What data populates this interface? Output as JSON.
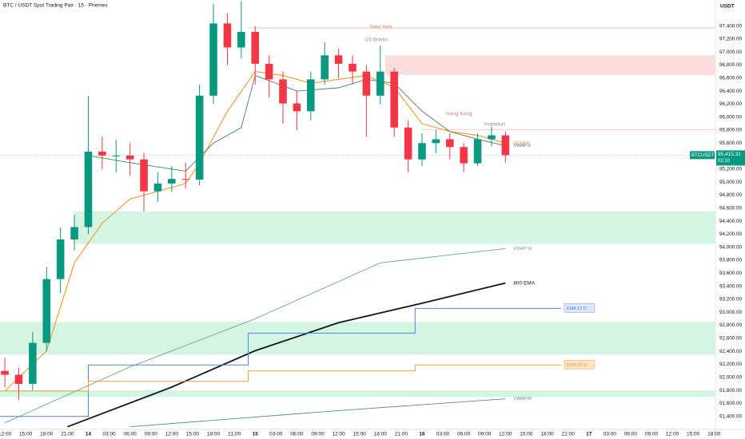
{
  "chart_data": {
    "type": "candlestick",
    "title": "BTC / USDT Spot Trading Pair · 15 · Phemex",
    "currency_label": "USDT",
    "up_color": "#089981",
    "down_color": "#f23645",
    "x": [
      12,
      14,
      16,
      18,
      20,
      22,
      24,
      26,
      28,
      30,
      32,
      34,
      36,
      38,
      40,
      42,
      44,
      46,
      48,
      50,
      52,
      54,
      56,
      58,
      60,
      62,
      64,
      66,
      68,
      70,
      72,
      74,
      76,
      78,
      80,
      82,
      84
    ],
    "open": [
      92100,
      92040,
      91900,
      92530,
      93510,
      94120,
      94310,
      95470,
      95410,
      95410,
      95350,
      94860,
      94980,
      95050,
      95040,
      96330,
      97440,
      97070,
      97310,
      96820,
      96580,
      96210,
      96090,
      96580,
      96950,
      96820,
      96700,
      96330,
      96700,
      95840,
      95350,
      95600,
      95660,
      95540,
      95290,
      95660,
      95720
    ],
    "high": [
      92300,
      92150,
      92700,
      93700,
      94300,
      94500,
      96330,
      95700,
      95650,
      95600,
      95450,
      95150,
      95250,
      95300,
      96500,
      97740,
      97600,
      97780,
      97400,
      96950,
      96700,
      96400,
      96700,
      97150,
      97050,
      96950,
      96800,
      97100,
      96750,
      95950,
      95750,
      95800,
      95750,
      95600,
      95750,
      95850,
      95780
    ],
    "low": [
      91850,
      91650,
      91800,
      92400,
      93300,
      93950,
      94200,
      95200,
      95150,
      95100,
      94550,
      94700,
      94850,
      94900,
      94950,
      96200,
      96800,
      96900,
      96500,
      96300,
      95900,
      95800,
      95950,
      96500,
      96600,
      96500,
      95700,
      96200,
      95700,
      95150,
      95250,
      95450,
      95350,
      95150,
      95250,
      95550,
      95300
    ],
    "close": [
      92040,
      91900,
      92530,
      93510,
      94120,
      94310,
      95470,
      95410,
      95410,
      95350,
      94860,
      94980,
      95050,
      95040,
      96330,
      97440,
      97070,
      97310,
      96820,
      96580,
      96210,
      96090,
      96580,
      96950,
      96820,
      96700,
      96330,
      96700,
      95840,
      95350,
      95600,
      95660,
      95540,
      95290,
      95660,
      95720,
      95415.31
    ],
    "xlim": [
      11.3,
      114.2
    ],
    "xticks": [
      {
        "value": 12,
        "label": "12:00"
      },
      {
        "value": 15,
        "label": "15:00"
      },
      {
        "value": 18,
        "label": "18:00"
      },
      {
        "value": 21,
        "label": "21:00"
      },
      {
        "value": 24,
        "label": "14"
      },
      {
        "value": 27,
        "label": "03:00"
      },
      {
        "value": 30,
        "label": "06:00"
      },
      {
        "value": 33,
        "label": "09:00"
      },
      {
        "value": 36,
        "label": "12:00"
      },
      {
        "value": 39,
        "label": "15:00"
      },
      {
        "value": 42,
        "label": "18:00"
      },
      {
        "value": 45,
        "label": "21:00"
      },
      {
        "value": 48,
        "label": "15"
      },
      {
        "value": 51,
        "label": "03:00"
      },
      {
        "value": 54,
        "label": "06:00"
      },
      {
        "value": 57,
        "label": "09:00"
      },
      {
        "value": 60,
        "label": "12:00"
      },
      {
        "value": 63,
        "label": "15:00"
      },
      {
        "value": 66,
        "label": "18:00"
      },
      {
        "value": 69,
        "label": "21:00"
      },
      {
        "value": 72,
        "label": "16"
      },
      {
        "value": 75,
        "label": "03:00"
      },
      {
        "value": 78,
        "label": "06:00"
      },
      {
        "value": 81,
        "label": "09:00"
      },
      {
        "value": 84,
        "label": "12:00"
      },
      {
        "value": 87,
        "label": "15:00"
      },
      {
        "value": 90,
        "label": "18:00"
      },
      {
        "value": 93,
        "label": "21:00"
      },
      {
        "value": 96,
        "label": "17"
      },
      {
        "value": 99,
        "label": "03:00"
      },
      {
        "value": 102,
        "label": "06:00"
      },
      {
        "value": 105,
        "label": "09:00"
      },
      {
        "value": 108,
        "label": "12:00"
      },
      {
        "value": 111,
        "label": "15:00"
      },
      {
        "value": 114,
        "label": "18:00"
      }
    ],
    "ylim": [
      91200,
      97800
    ],
    "yticks": [
      {
        "value": 91400,
        "label": "91,400.00"
      },
      {
        "value": 91600,
        "label": "91,600.00"
      },
      {
        "value": 91800,
        "label": "91,800.00"
      },
      {
        "value": 92000,
        "label": "92,000.00"
      },
      {
        "value": 92200,
        "label": "92,200.00"
      },
      {
        "value": 92400,
        "label": "92,400.00"
      },
      {
        "value": 92600,
        "label": "92,600.00"
      },
      {
        "value": 92800,
        "label": "92,800.00"
      },
      {
        "value": 93000,
        "label": "93,000.00"
      },
      {
        "value": 93200,
        "label": "93,200.00"
      },
      {
        "value": 93400,
        "label": "93,400.00"
      },
      {
        "value": 93600,
        "label": "93,600.00"
      },
      {
        "value": 93800,
        "label": "93,800.00"
      },
      {
        "value": 94000,
        "label": "94,000.00"
      },
      {
        "value": 94200,
        "label": "94,200.00"
      },
      {
        "value": 94400,
        "label": "94,400.00"
      },
      {
        "value": 94600,
        "label": "94,600.00"
      },
      {
        "value": 94800,
        "label": "94,800.00"
      },
      {
        "value": 95000,
        "label": "95,000.00"
      },
      {
        "value": 95200,
        "label": "95,200.00"
      },
      {
        "value": 95400,
        "label": "95,400.00"
      },
      {
        "value": 95600,
        "label": "95,600.00"
      },
      {
        "value": 95800,
        "label": "95,800.00"
      },
      {
        "value": 96000,
        "label": "96,000.00"
      },
      {
        "value": 96200,
        "label": "96,200.00"
      },
      {
        "value": 96400,
        "label": "96,400.00"
      },
      {
        "value": 96600,
        "label": "96,600.00"
      },
      {
        "value": 96800,
        "label": "96,800.00"
      },
      {
        "value": 97000,
        "label": "97,000.00"
      },
      {
        "value": 97200,
        "label": "97,200.00"
      },
      {
        "value": 97400,
        "label": "97,400.00"
      }
    ],
    "grid": false,
    "zones": [
      {
        "low": 96650,
        "high": 96950,
        "x_start": 66.7,
        "color": "#fcdcdc"
      },
      {
        "low": 94050,
        "high": 94550,
        "x_start": 22,
        "color": "#d3f5e2"
      },
      {
        "low": 92350,
        "high": 92850,
        "x_start": 11.3,
        "color": "#d3f5e2"
      },
      {
        "low": 91700,
        "high": 91800,
        "x_start": 11.3,
        "color": "#d3f5e2"
      }
    ],
    "levels": [
      {
        "value": 97370,
        "x_start": 47,
        "color": "#f4b6b6"
      },
      {
        "value": 95810,
        "x_start": 72,
        "color": "#f4b6b6"
      }
    ],
    "lines": [
      {
        "name": "50 EMA",
        "color": "#f0a030",
        "width": 1.2,
        "x": [
          12,
          18,
          22,
          26,
          30,
          34,
          38,
          40,
          44,
          48,
          52,
          56,
          60,
          64,
          68,
          72,
          76,
          80,
          84
        ],
        "values": [
          91790,
          92410,
          93760,
          94370,
          94740,
          94860,
          94980,
          95290,
          96090,
          96700,
          96640,
          96520,
          96580,
          96640,
          96460,
          95900,
          95780,
          95720,
          95600
        ]
      },
      {
        "name": "VWAP-D",
        "color": "#4a7c6a",
        "width": 0.9,
        "x": [
          24,
          30,
          38,
          42,
          46,
          48,
          54,
          60,
          64,
          68,
          72,
          76,
          80,
          84
        ],
        "values": [
          95410,
          95300,
          95170,
          95600,
          95840,
          96640,
          96400,
          96450,
          96580,
          96520,
          96090,
          95780,
          95660,
          95560
        ]
      },
      {
        "name": "VWAP-W",
        "color": "#6fa88c",
        "width": 0.9,
        "x": [
          12,
          30,
          48,
          66,
          84
        ],
        "values": [
          91300,
          92160,
          92900,
          93760,
          93980
        ]
      },
      {
        "name": "800 EMA",
        "color": "#131722",
        "width": 1.8,
        "x": [
          21,
          36,
          48,
          60,
          72,
          84
        ],
        "values": [
          91240,
          91850,
          92410,
          92840,
          93140,
          93450
        ]
      },
      {
        "name": "EMA 13 D",
        "color": "#4f86d9",
        "width": 1,
        "boxed": true,
        "box_color": "#dce7f9",
        "x": [
          11.3,
          24,
          24,
          47,
          47,
          71,
          71,
          92
        ],
        "values": [
          91400,
          91400,
          92190,
          92190,
          92680,
          92680,
          93060,
          93060
        ]
      },
      {
        "name": "EMA 50 D",
        "color": "#f0a030",
        "width": 1,
        "boxed": true,
        "box_color": "#fde3c6",
        "x": [
          11.3,
          24,
          24,
          47,
          47,
          71,
          71,
          92
        ],
        "values": [
          91790,
          91790,
          91940,
          91940,
          92100,
          92100,
          92190,
          92190
        ]
      },
      {
        "name": "VWAP-M",
        "color": "#5f8f75",
        "width": 0.9,
        "x": [
          30,
          60,
          84
        ],
        "values": [
          91240,
          91490,
          91670
        ]
      }
    ],
    "annotations": [
      "New York",
      "US Brinks",
      "Hong Kong",
      "Frankfurt"
    ],
    "last_price": {
      "symbol": "BTCUSDT",
      "value": {
        "value": 95415.31,
        "label": "95,415.31"
      },
      "countdown": "02:10",
      "color": "#089981"
    }
  }
}
